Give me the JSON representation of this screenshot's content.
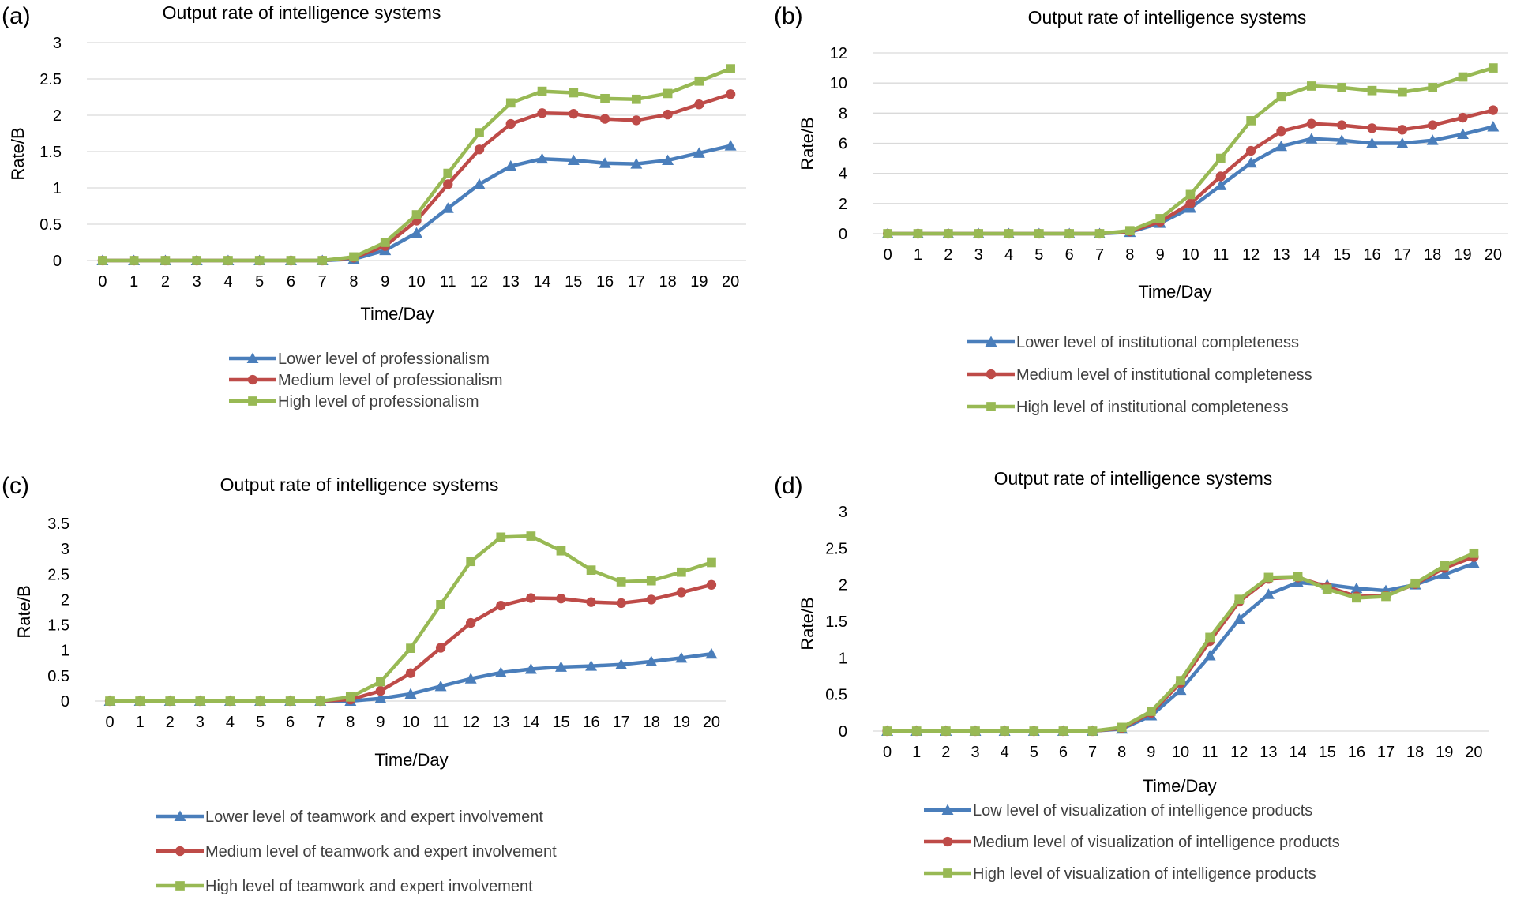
{
  "chart_data": [
    {
      "panel": "(a)",
      "type": "line",
      "title": "Output rate of intelligence systems",
      "xlabel": "Time/Day",
      "ylabel": "Rate/B",
      "x": [
        0,
        1,
        2,
        3,
        4,
        5,
        6,
        7,
        8,
        9,
        10,
        11,
        12,
        13,
        14,
        15,
        16,
        17,
        18,
        19,
        20
      ],
      "yticks": [
        "0",
        "0.5",
        "1",
        "1.5",
        "2",
        "2.5",
        "3"
      ],
      "ylim": [
        0,
        3
      ],
      "grid": true,
      "legend_position": "bottom",
      "series": [
        {
          "name": "Lower level of professionalism",
          "color": "#4a7ebb",
          "marker": "triangle",
          "values": [
            0,
            0,
            0,
            0,
            0,
            0,
            0,
            0,
            0.02,
            0.14,
            0.38,
            0.72,
            1.05,
            1.3,
            1.4,
            1.38,
            1.34,
            1.33,
            1.38,
            1.48,
            1.58
          ]
        },
        {
          "name": "Medium level of professionalism",
          "color": "#be4b48",
          "marker": "circle",
          "values": [
            0,
            0,
            0,
            0,
            0,
            0,
            0,
            0,
            0.04,
            0.2,
            0.55,
            1.05,
            1.53,
            1.88,
            2.03,
            2.02,
            1.95,
            1.93,
            2.01,
            2.15,
            2.29
          ]
        },
        {
          "name": "High level of professionalism",
          "color": "#98b954",
          "marker": "square",
          "values": [
            0,
            0,
            0,
            0,
            0,
            0,
            0,
            0,
            0.05,
            0.25,
            0.63,
            1.2,
            1.76,
            2.17,
            2.33,
            2.31,
            2.23,
            2.22,
            2.3,
            2.47,
            2.64
          ]
        }
      ]
    },
    {
      "panel": "(b)",
      "type": "line",
      "title": "Output rate of intelligence systems",
      "xlabel": "Time/Day",
      "ylabel": "Rate/B",
      "x": [
        0,
        1,
        2,
        3,
        4,
        5,
        6,
        7,
        8,
        9,
        10,
        11,
        12,
        13,
        14,
        15,
        16,
        17,
        18,
        19,
        20
      ],
      "yticks": [
        "0",
        "2",
        "4",
        "6",
        "8",
        "10",
        "12"
      ],
      "ylim": [
        0,
        12
      ],
      "grid": true,
      "legend_position": "bottom",
      "series": [
        {
          "name": "Lower level of institutional completeness",
          "color": "#4a7ebb",
          "marker": "triangle",
          "values": [
            0,
            0,
            0,
            0,
            0,
            0,
            0,
            0,
            0.1,
            0.7,
            1.7,
            3.2,
            4.7,
            5.8,
            6.3,
            6.2,
            6.0,
            6.0,
            6.2,
            6.6,
            7.1
          ]
        },
        {
          "name": "Medium level of institutional completeness",
          "color": "#be4b48",
          "marker": "circle",
          "values": [
            0,
            0,
            0,
            0,
            0,
            0,
            0,
            0,
            0.15,
            0.8,
            2.0,
            3.8,
            5.5,
            6.8,
            7.3,
            7.2,
            7.0,
            6.9,
            7.2,
            7.7,
            8.2
          ]
        },
        {
          "name": "High level of institutional completeness",
          "color": "#98b954",
          "marker": "square",
          "values": [
            0,
            0,
            0,
            0,
            0,
            0,
            0,
            0,
            0.2,
            1.0,
            2.6,
            5.0,
            7.5,
            9.1,
            9.8,
            9.7,
            9.5,
            9.4,
            9.7,
            10.4,
            11.0
          ]
        }
      ]
    },
    {
      "panel": "(c)",
      "type": "line",
      "title": "Output rate of intelligence systems",
      "xlabel": "Time/Day",
      "ylabel": "Rate/B",
      "x": [
        0,
        1,
        2,
        3,
        4,
        5,
        6,
        7,
        8,
        9,
        10,
        11,
        12,
        13,
        14,
        15,
        16,
        17,
        18,
        19,
        20
      ],
      "yticks": [
        "0",
        "0.5",
        "1",
        "1.5",
        "2",
        "2.5",
        "3",
        "3.5"
      ],
      "ylim": [
        0,
        3.5
      ],
      "grid": false,
      "legend_position": "bottom",
      "series": [
        {
          "name": "Lower level of teamwork and expert involvement",
          "color": "#4a7ebb",
          "marker": "triangle",
          "values": [
            0,
            0,
            0,
            0,
            0,
            0,
            0,
            0,
            0,
            0.05,
            0.14,
            0.29,
            0.44,
            0.56,
            0.63,
            0.67,
            0.69,
            0.72,
            0.78,
            0.85,
            0.93
          ]
        },
        {
          "name": "Medium level of teamwork and expert involvement",
          "color": "#be4b48",
          "marker": "circle",
          "values": [
            0,
            0,
            0,
            0,
            0,
            0,
            0,
            0,
            0.03,
            0.2,
            0.55,
            1.05,
            1.54,
            1.88,
            2.03,
            2.02,
            1.95,
            1.93,
            2.0,
            2.14,
            2.29
          ]
        },
        {
          "name": "High level of teamwork and expert involvement",
          "color": "#98b954",
          "marker": "square",
          "values": [
            0,
            0,
            0,
            0,
            0,
            0,
            0,
            0,
            0.08,
            0.38,
            1.04,
            1.9,
            2.75,
            3.23,
            3.25,
            2.96,
            2.58,
            2.35,
            2.37,
            2.54,
            2.73
          ]
        }
      ]
    },
    {
      "panel": "(d)",
      "type": "line",
      "title": "Output rate of intelligence systems",
      "xlabel": "Time/Day",
      "ylabel": "Rate/B",
      "x": [
        0,
        1,
        2,
        3,
        4,
        5,
        6,
        7,
        8,
        9,
        10,
        11,
        12,
        13,
        14,
        15,
        16,
        17,
        18,
        19,
        20
      ],
      "yticks": [
        "0",
        "0.5",
        "1",
        "1.5",
        "2",
        "2.5",
        "3"
      ],
      "ylim": [
        0,
        3
      ],
      "grid": false,
      "legend_position": "bottom",
      "series": [
        {
          "name": "Low level of visualization of intelligence products",
          "color": "#4a7ebb",
          "marker": "triangle",
          "values": [
            0,
            0,
            0,
            0,
            0,
            0,
            0,
            0,
            0.03,
            0.21,
            0.56,
            1.03,
            1.53,
            1.87,
            2.03,
            2.0,
            1.95,
            1.92,
            2.0,
            2.14,
            2.29
          ]
        },
        {
          "name": "Medium level of visualization of intelligence products",
          "color": "#be4b48",
          "marker": "circle",
          "values": [
            0,
            0,
            0,
            0,
            0,
            0,
            0,
            0,
            0.04,
            0.25,
            0.66,
            1.23,
            1.77,
            2.08,
            2.1,
            1.97,
            1.84,
            1.85,
            2.01,
            2.23,
            2.38
          ]
        },
        {
          "name": "High level of visualization of intelligence products",
          "color": "#98b954",
          "marker": "square",
          "values": [
            0,
            0,
            0,
            0,
            0,
            0,
            0,
            0,
            0.05,
            0.27,
            0.69,
            1.28,
            1.8,
            2.1,
            2.11,
            1.94,
            1.82,
            1.84,
            2.02,
            2.26,
            2.43
          ]
        }
      ]
    }
  ]
}
